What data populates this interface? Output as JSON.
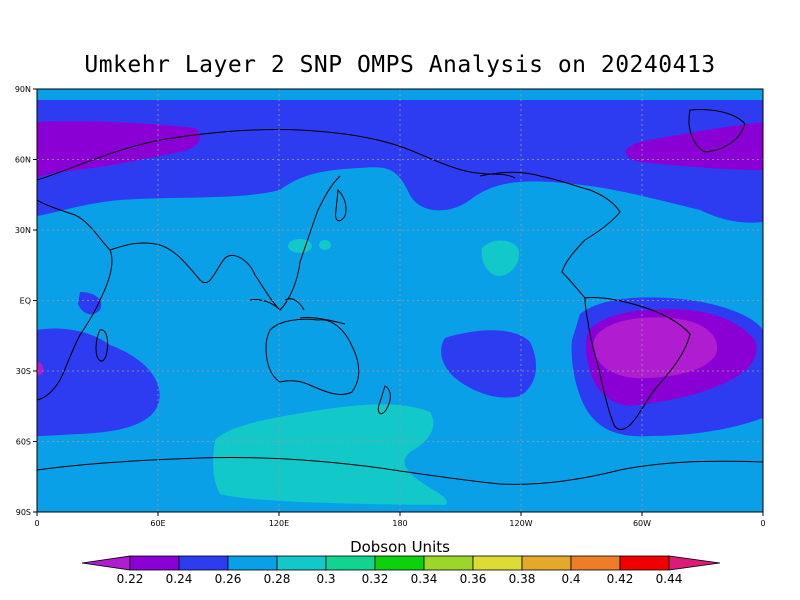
{
  "title": "Umkehr Layer 2 SNP OMPS Analysis on 20240413",
  "map": {
    "lat_ticks": [
      "90N",
      "60N",
      "30N",
      "EQ",
      "30S",
      "60S",
      "90S"
    ],
    "lon_ticks": [
      "0",
      "60E",
      "120E",
      "180",
      "120W",
      "60W",
      "0"
    ]
  },
  "colorbar": {
    "label": "Dobson Units",
    "tick_labels": [
      "0.22",
      "0.24",
      "0.26",
      "0.28",
      "0.3",
      "0.32",
      "0.34",
      "0.36",
      "0.38",
      "0.4",
      "0.42",
      "0.44"
    ],
    "low_color": "#b01cd0",
    "high_color": "#dc1a78",
    "colors": [
      "#8a00d4",
      "#2d3cf0",
      "#0aa0e8",
      "#12c8c8",
      "#11d491",
      "#0dd10d",
      "#9cd62a",
      "#dddc35",
      "#e2a92c",
      "#ee7d28",
      "#f00000"
    ]
  },
  "field_colors": {
    "v024": "#8a00d4",
    "v026": "#2d3cf0",
    "v028": "#0aa0e8",
    "v030": "#12c8c8",
    "v022": "#b01cd0"
  }
}
